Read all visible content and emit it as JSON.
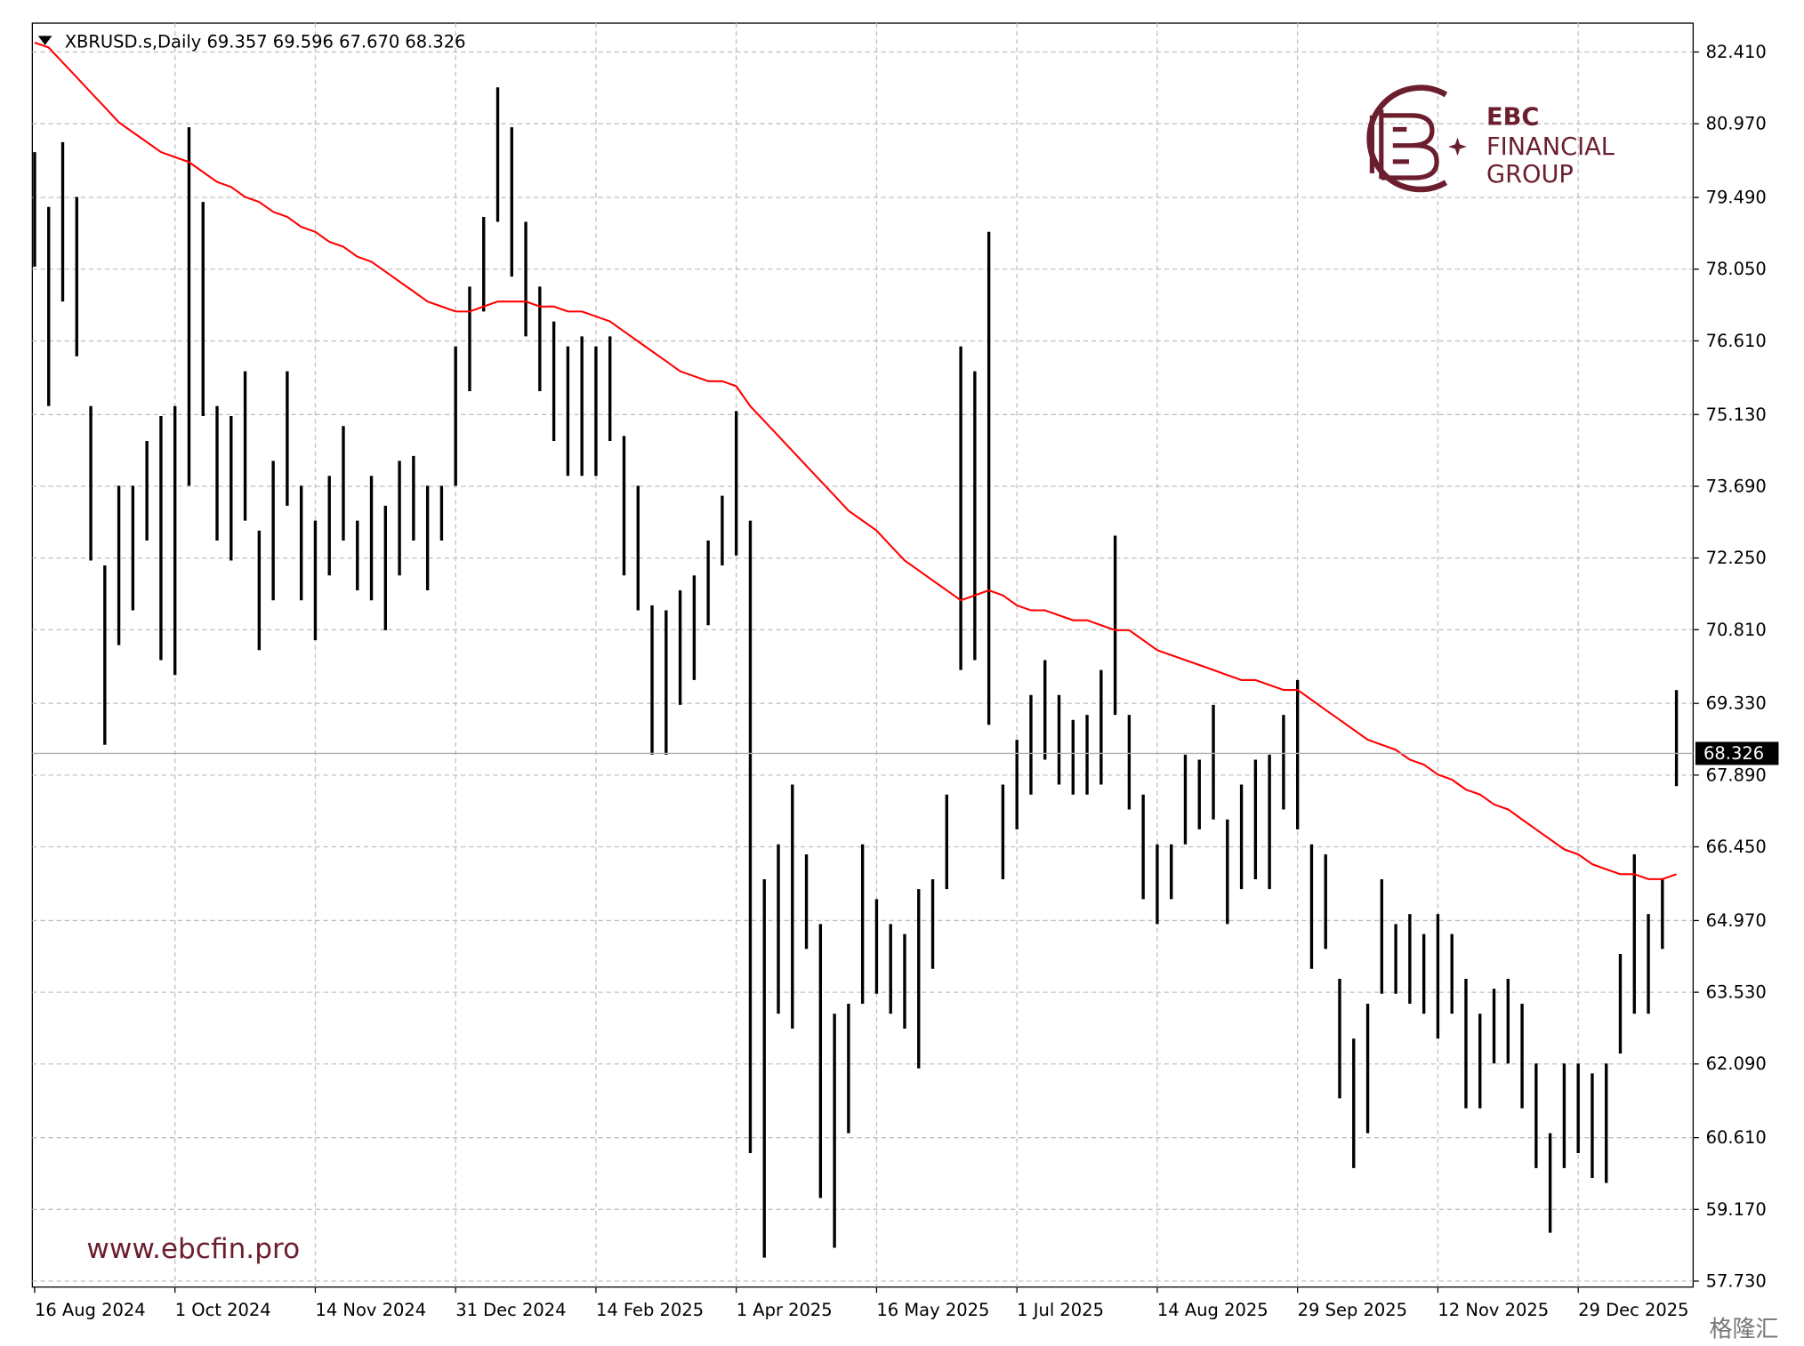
{
  "chart_data": {
    "type": "ohlc",
    "header": "XBRUSD.s,Daily  69.357 69.596 67.670 68.326",
    "bar_color": "#000000",
    "categories": [
      "16 Aug 2024",
      null,
      null,
      null,
      null,
      null,
      null,
      null,
      null,
      null,
      "1 Oct 2024",
      null,
      null,
      null,
      null,
      null,
      null,
      null,
      null,
      null,
      "14 Nov 2024",
      null,
      null,
      null,
      null,
      null,
      null,
      null,
      null,
      null,
      "31 Dec 2024",
      null,
      null,
      null,
      null,
      null,
      null,
      null,
      null,
      null,
      "14 Feb 2025",
      null,
      null,
      null,
      null,
      null,
      null,
      null,
      null,
      null,
      "1 Apr 2025",
      null,
      null,
      null,
      null,
      null,
      null,
      null,
      null,
      null,
      "16 May 2025",
      null,
      null,
      null,
      null,
      null,
      null,
      null,
      null,
      null,
      "1 Jul 2025",
      null,
      null,
      null,
      null,
      null,
      null,
      null,
      null,
      null,
      "14 Aug 2025",
      null,
      null,
      null,
      null,
      null,
      null,
      null,
      null,
      null,
      "29 Sep 2025",
      null,
      null,
      null,
      null,
      null,
      null,
      null,
      null,
      null,
      "12 Nov 2025",
      null,
      null,
      null,
      null,
      null,
      null,
      null,
      null,
      null,
      "29 Dec 2025",
      null,
      null,
      null,
      null,
      null,
      null,
      null
    ],
    "high": [
      80.4,
      79.3,
      80.6,
      79.5,
      75.3,
      72.1,
      73.7,
      73.7,
      74.6,
      75.1,
      75.3,
      80.9,
      79.4,
      75.3,
      75.1,
      76.0,
      72.8,
      74.2,
      76.0,
      73.7,
      73.0,
      73.9,
      74.9,
      73.0,
      73.9,
      73.3,
      74.2,
      74.3,
      73.7,
      73.7,
      76.5,
      77.7,
      79.1,
      81.7,
      80.9,
      79.0,
      77.7,
      77.0,
      76.5,
      76.7,
      76.5,
      76.7,
      74.7,
      73.7,
      71.3,
      71.2,
      71.6,
      71.9,
      72.6,
      73.5,
      75.2,
      73.0,
      65.8,
      66.5,
      67.7,
      66.3,
      64.9,
      63.1,
      63.3,
      66.5,
      65.4,
      64.9,
      64.7,
      65.6,
      65.8,
      67.5,
      76.5,
      76.0,
      78.8,
      67.7,
      68.6,
      69.5,
      70.2,
      69.5,
      69.0,
      69.1,
      70.0,
      72.7,
      69.1,
      67.5,
      66.5,
      66.5,
      68.3,
      68.2,
      69.3,
      67.0,
      67.7,
      68.2,
      68.3,
      69.1,
      69.8,
      66.5,
      66.3,
      63.8,
      62.6,
      63.3,
      65.8,
      64.9,
      65.1,
      64.7,
      65.1,
      64.7,
      63.8,
      63.1,
      63.6,
      63.8,
      63.3,
      62.1,
      60.7,
      62.1,
      62.1,
      61.9,
      62.1,
      64.3,
      66.3,
      65.1,
      65.8,
      69.596
    ],
    "low": [
      78.1,
      75.3,
      77.4,
      76.3,
      72.2,
      68.5,
      70.5,
      71.2,
      72.6,
      70.2,
      69.9,
      73.7,
      75.1,
      72.6,
      72.2,
      73.0,
      70.4,
      71.4,
      73.3,
      71.4,
      70.6,
      71.9,
      72.6,
      71.6,
      71.4,
      70.8,
      71.9,
      72.6,
      71.6,
      72.6,
      73.7,
      75.6,
      77.2,
      79.0,
      77.9,
      76.7,
      75.6,
      74.6,
      73.9,
      73.9,
      73.9,
      74.6,
      71.9,
      71.2,
      68.3,
      68.3,
      69.3,
      69.8,
      70.9,
      72.1,
      72.3,
      60.3,
      58.2,
      63.1,
      62.8,
      64.4,
      59.4,
      58.4,
      60.7,
      63.3,
      63.5,
      63.1,
      62.8,
      62.0,
      64.0,
      65.6,
      70.0,
      70.2,
      68.9,
      65.8,
      66.8,
      67.5,
      68.2,
      67.7,
      67.5,
      67.5,
      67.7,
      69.1,
      67.2,
      65.4,
      64.9,
      65.4,
      66.5,
      66.8,
      67.0,
      64.9,
      65.6,
      65.8,
      65.6,
      67.2,
      66.8,
      64.0,
      64.4,
      61.4,
      60.0,
      60.7,
      63.5,
      63.5,
      63.3,
      63.1,
      62.6,
      63.1,
      61.2,
      61.2,
      62.1,
      62.1,
      61.2,
      60.0,
      58.7,
      60.0,
      60.3,
      59.8,
      59.7,
      62.3,
      63.1,
      63.1,
      64.4,
      67.67
    ],
    "ma": {
      "color": "#ff0000",
      "values": [
        82.6,
        82.5,
        82.2,
        81.9,
        81.6,
        81.3,
        81.0,
        80.8,
        80.6,
        80.4,
        80.3,
        80.2,
        80.0,
        79.8,
        79.7,
        79.5,
        79.4,
        79.2,
        79.1,
        78.9,
        78.8,
        78.6,
        78.5,
        78.3,
        78.2,
        78.0,
        77.8,
        77.6,
        77.4,
        77.3,
        77.2,
        77.2,
        77.3,
        77.4,
        77.4,
        77.4,
        77.3,
        77.3,
        77.2,
        77.2,
        77.1,
        77.0,
        76.8,
        76.6,
        76.4,
        76.2,
        76.0,
        75.9,
        75.8,
        75.8,
        75.7,
        75.3,
        75.0,
        74.7,
        74.4,
        74.1,
        73.8,
        73.5,
        73.2,
        73.0,
        72.8,
        72.5,
        72.2,
        72.0,
        71.8,
        71.6,
        71.4,
        71.5,
        71.6,
        71.5,
        71.3,
        71.2,
        71.2,
        71.1,
        71.0,
        71.0,
        70.9,
        70.8,
        70.8,
        70.6,
        70.4,
        70.3,
        70.2,
        70.1,
        70.0,
        69.9,
        69.8,
        69.8,
        69.7,
        69.6,
        69.6,
        69.4,
        69.2,
        69.0,
        68.8,
        68.6,
        68.5,
        68.4,
        68.2,
        68.1,
        67.9,
        67.8,
        67.6,
        67.5,
        67.3,
        67.2,
        67.0,
        66.8,
        66.6,
        66.4,
        66.3,
        66.1,
        66.0,
        65.9,
        65.9,
        65.8,
        65.8,
        65.9
      ]
    },
    "last_price": 68.326,
    "ylim": [
      57.61,
      82.99
    ],
    "yticks": [
      {
        "value": 57.73,
        "label": "57.730"
      },
      {
        "value": 59.17,
        "label": "59.170"
      },
      {
        "value": 60.61,
        "label": "60.610"
      },
      {
        "value": 62.09,
        "label": "62.090"
      },
      {
        "value": 63.53,
        "label": "63.530"
      },
      {
        "value": 64.97,
        "label": "64.970"
      },
      {
        "value": 66.45,
        "label": "66.450"
      },
      {
        "value": 67.89,
        "label": "67.890"
      },
      {
        "value": 69.33,
        "label": "69.330"
      },
      {
        "value": 70.81,
        "label": "70.810"
      },
      {
        "value": 72.25,
        "label": "72.250"
      },
      {
        "value": 73.69,
        "label": "73.690"
      },
      {
        "value": 75.13,
        "label": "75.130"
      },
      {
        "value": 76.61,
        "label": "76.610"
      },
      {
        "value": 78.05,
        "label": "78.050"
      },
      {
        "value": 79.49,
        "label": "79.490"
      },
      {
        "value": 80.97,
        "label": "80.970"
      },
      {
        "value": 82.41,
        "label": "82.410"
      }
    ],
    "grid": true
  },
  "logo": {
    "line1": "EBC",
    "line2": "FINANCIAL",
    "line3": "GROUP"
  },
  "website": "www.ebcfin.pro",
  "watermark": "格隆汇"
}
